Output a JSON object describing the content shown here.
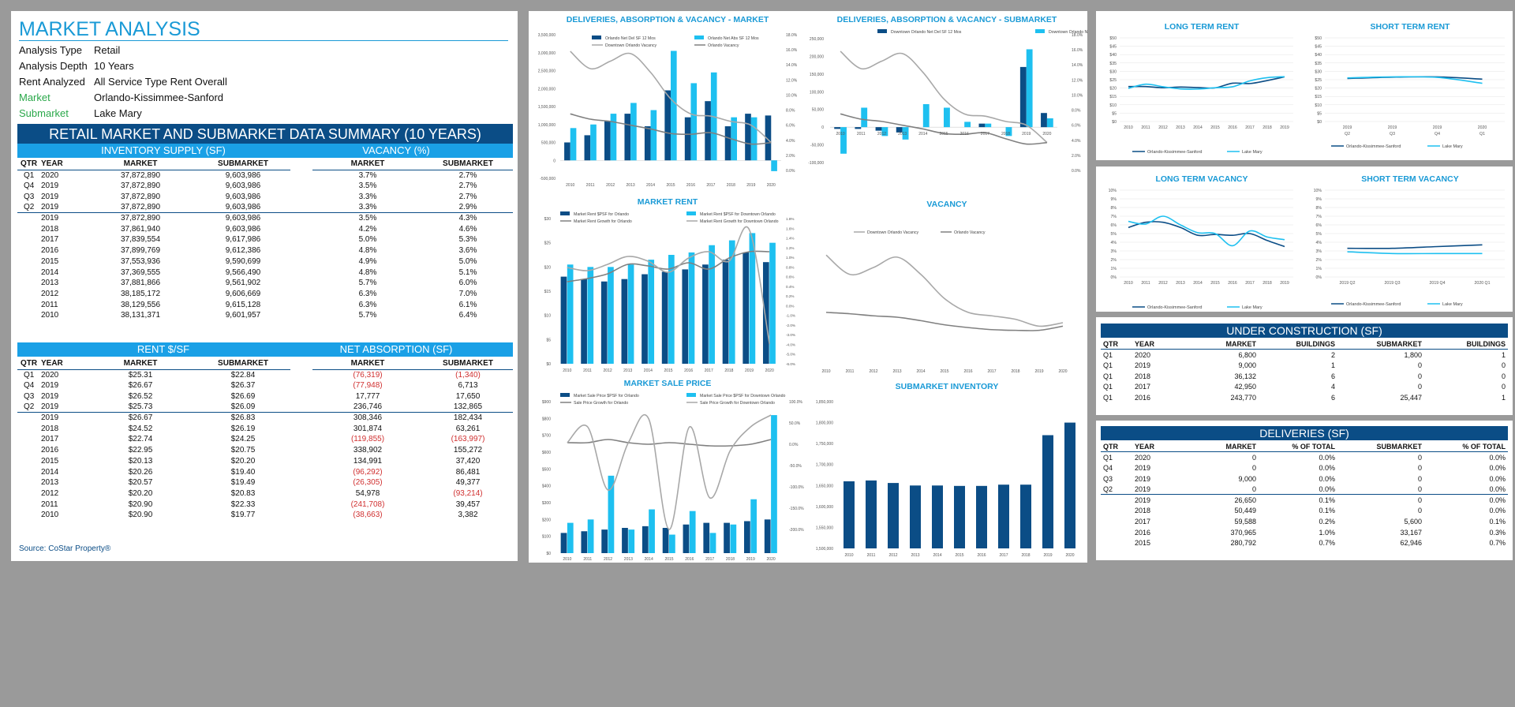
{
  "header": {
    "title": "MARKET ANALYSIS",
    "meta": [
      {
        "k": "Analysis Type",
        "v": "Retail",
        "green": false
      },
      {
        "k": "Analysis Depth",
        "v": "10 Years",
        "green": false
      },
      {
        "k": "Rent Analyzed",
        "v": "All Service Type Rent Overall",
        "green": false
      },
      {
        "k": "Market",
        "v": "Orlando-Kissimmee-Sanford",
        "green": true
      },
      {
        "k": "Submarket",
        "v": "Lake Mary",
        "green": true
      }
    ]
  },
  "summary": {
    "title": "RETAIL MARKET AND SUBMARKET DATA SUMMARY (10 YEARS)",
    "inv_label": "INVENTORY SUPPLY (SF)",
    "vac_label": "VACANCY (%)",
    "rent_label": "RENT $/SF",
    "abs_label": "NET ABSORPTION (SF)",
    "cols": [
      "QTR",
      "YEAR",
      "MARKET",
      "SUBMARKET",
      "MARKET",
      "SUBMARKET"
    ],
    "rows1": [
      [
        "Q1",
        "2020",
        "37,872,890",
        "9,603,986",
        "3.7%",
        "2.7%"
      ],
      [
        "Q4",
        "2019",
        "37,872,890",
        "9,603,986",
        "3.5%",
        "2.7%"
      ],
      [
        "Q3",
        "2019",
        "37,872,890",
        "9,603,986",
        "3.3%",
        "2.7%"
      ],
      [
        "Q2",
        "2019",
        "37,872,890",
        "9,603,986",
        "3.3%",
        "2.9%"
      ],
      [
        "",
        "2019",
        "37,872,890",
        "9,603,986",
        "3.5%",
        "4.3%"
      ],
      [
        "",
        "2018",
        "37,861,940",
        "9,603,986",
        "4.2%",
        "4.6%"
      ],
      [
        "",
        "2017",
        "37,839,554",
        "9,617,986",
        "5.0%",
        "5.3%"
      ],
      [
        "",
        "2016",
        "37,899,769",
        "9,612,386",
        "4.8%",
        "3.6%"
      ],
      [
        "",
        "2015",
        "37,553,936",
        "9,590,699",
        "4.9%",
        "5.0%"
      ],
      [
        "",
        "2014",
        "37,369,555",
        "9,566,490",
        "4.8%",
        "5.1%"
      ],
      [
        "",
        "2013",
        "37,881,866",
        "9,561,902",
        "5.7%",
        "6.0%"
      ],
      [
        "",
        "2012",
        "38,185,172",
        "9,606,669",
        "6.3%",
        "7.0%"
      ],
      [
        "",
        "2011",
        "38,129,556",
        "9,615,128",
        "6.3%",
        "6.1%"
      ],
      [
        "",
        "2010",
        "38,131,371",
        "9,601,957",
        "5.7%",
        "6.4%"
      ]
    ],
    "rows2": [
      [
        "Q1",
        "2020",
        "$25.31",
        "$22.84",
        "(76,319)",
        "(1,340)"
      ],
      [
        "Q4",
        "2019",
        "$26.67",
        "$26.37",
        "(77,948)",
        "6,713"
      ],
      [
        "Q3",
        "2019",
        "$26.52",
        "$26.69",
        "17,777",
        "17,650"
      ],
      [
        "Q2",
        "2019",
        "$25.73",
        "$26.09",
        "236,746",
        "132,865"
      ],
      [
        "",
        "2019",
        "$26.67",
        "$26.83",
        "308,346",
        "182,434"
      ],
      [
        "",
        "2018",
        "$24.52",
        "$26.19",
        "301,874",
        "63,261"
      ],
      [
        "",
        "2017",
        "$22.74",
        "$24.25",
        "(119,855)",
        "(163,997)"
      ],
      [
        "",
        "2016",
        "$22.95",
        "$20.75",
        "338,902",
        "155,272"
      ],
      [
        "",
        "2015",
        "$20.13",
        "$20.20",
        "134,991",
        "37,420"
      ],
      [
        "",
        "2014",
        "$20.26",
        "$19.40",
        "(96,292)",
        "86,481"
      ],
      [
        "",
        "2013",
        "$20.57",
        "$19.49",
        "(26,305)",
        "49,377"
      ],
      [
        "",
        "2012",
        "$20.20",
        "$20.83",
        "54,978",
        "(93,214)"
      ],
      [
        "",
        "2011",
        "$20.90",
        "$22.33",
        "(241,708)",
        "39,457"
      ],
      [
        "",
        "2010",
        "$20.90",
        "$19.77",
        "(38,663)",
        "3,382"
      ]
    ],
    "source": "Source: CoStar Property®"
  },
  "charts": {
    "dav_market": {
      "title": "DELIVERIES, ABSORPTION & VACANCY - MARKET",
      "legend": [
        "Orlando Net Del SF 12 Mos",
        "Orlando Net Abs SF 12 Mos",
        "Downtown Orlando Vacancy",
        "Orlando Vacancy"
      ],
      "yl": [
        "3,500,000",
        "3,000,000",
        "2,500,000",
        "2,000,000",
        "1,500,000",
        "1,000,000",
        "500,000",
        "0",
        "-500,000"
      ],
      "yr": [
        "18.0%",
        "16.0%",
        "14.0%",
        "12.0%",
        "10.0%",
        "8.0%",
        "6.0%",
        "4.0%",
        "2.0%",
        "0.0%"
      ]
    },
    "dav_sub": {
      "title": "DELIVERIES, ABSORPTION & VACANCY - SUBMARKET",
      "legend": [
        "Downtown Orlando Net Del SF 12 Mos",
        "Downtown Orlando Net Abs SF 12 Mos"
      ],
      "yl": [
        "250,000",
        "200,000",
        "150,000",
        "100,000",
        "50,000",
        "0",
        "-50,000",
        "-100,000"
      ],
      "yr": [
        "18.0%",
        "16.0%",
        "14.0%",
        "12.0%",
        "10.0%",
        "8.0%",
        "6.0%",
        "4.0%",
        "2.0%",
        "0.0%"
      ]
    },
    "market_rent": {
      "title": "MARKET RENT",
      "legend": [
        "Market Rent $PSF for Orlando",
        "Market Rent $PSF for Downtown Orlando",
        "Market Rent Growth for Orlando",
        "Market Rent Growth for Downtown Orlando"
      ],
      "yl": [
        "$30",
        "$25",
        "$20",
        "$15",
        "$10",
        "$5",
        "$0"
      ],
      "yr": [
        "1.8%",
        "1.6%",
        "1.4%",
        "1.2%",
        "1.0%",
        "0.8%",
        "0.6%",
        "0.4%",
        "0.2%",
        "0.0%",
        "-1.0%",
        "-2.0%",
        "-3.0%",
        "-4.0%",
        "-5.0%",
        "-6.0%"
      ]
    },
    "vacancy": {
      "title": "VACANCY",
      "legend": [
        "Downtown Orlando Vacancy",
        "Orlando Vacancy"
      ]
    },
    "sale_price": {
      "title": "MARKET SALE PRICE",
      "legend": [
        "Market Sale Price $PSF for Orlando",
        "Market Sale Price $PSF for Downtown Orlando",
        "Sale Price Growth for Orlando",
        "Sale Price Growth for Downtown Orlando"
      ],
      "yl": [
        "$900",
        "$800",
        "$700",
        "$600",
        "$500",
        "$400",
        "$300",
        "$200",
        "$100",
        "$0"
      ],
      "yr": [
        "100.0%",
        "50.0%",
        "0.0%",
        "-50.0%",
        "-100.0%",
        "-150.0%",
        "-200.0%"
      ]
    },
    "sub_inventory": {
      "title": "SUBMARKET INVENTORY",
      "yl": [
        "1,850,000",
        "1,800,000",
        "1,750,000",
        "1,700,000",
        "1,650,000",
        "1,600,000",
        "1,550,000",
        "1,500,000"
      ]
    },
    "ltr": {
      "title": "LONG TERM RENT",
      "yl": [
        "$50",
        "$45",
        "$40",
        "$35",
        "$30",
        "$25",
        "$20",
        "$15",
        "$10",
        "$5",
        "$0"
      ],
      "legend": [
        "Orlando-Kissimmee-Sanford",
        "Lake Mary"
      ]
    },
    "str": {
      "title": "SHORT TERM RENT",
      "yl": [
        "$50",
        "$45",
        "$40",
        "$35",
        "$30",
        "$25",
        "$20",
        "$15",
        "$10",
        "$5",
        "$0"
      ],
      "xt": [
        "2019\nQ2",
        "2019\nQ3",
        "2019\nQ4",
        "2020\nQ1"
      ],
      "legend": [
        "Orlando-Kissimmee-Sanford",
        "Lake Mary"
      ]
    },
    "ltv": {
      "title": "LONG TERM VACANCY",
      "yl": [
        "10%",
        "9%",
        "8%",
        "7%",
        "6%",
        "5%",
        "4%",
        "3%",
        "2%",
        "1%",
        "0%"
      ],
      "legend": [
        "Orlando-Kissimmee-Sanford",
        "Lake Mary"
      ]
    },
    "stv": {
      "title": "SHORT TERM VACANCY",
      "yl": [
        "10%",
        "9%",
        "8%",
        "7%",
        "6%",
        "5%",
        "4%",
        "3%",
        "2%",
        "1%",
        "0%"
      ],
      "legend": [
        "Orlando-Kissimmee-Sanford",
        "Lake Mary"
      ]
    }
  },
  "chart_data": [
    {
      "type": "bar",
      "title": "DELIVERIES, ABSORPTION & VACANCY - MARKET",
      "categories": [
        "2010",
        "2011",
        "2012",
        "2013",
        "2014",
        "2015",
        "2016",
        "2017",
        "2018",
        "2019",
        "2020"
      ],
      "series": [
        {
          "name": "Orlando Net Del SF 12 Mos",
          "values": [
            500000,
            700000,
            1100000,
            1300000,
            950000,
            1950000,
            1200000,
            1650000,
            950000,
            1300000,
            1250000
          ]
        },
        {
          "name": "Orlando Net Abs SF 12 Mos",
          "values": [
            900000,
            1000000,
            1300000,
            1600000,
            1400000,
            3050000,
            2150000,
            2450000,
            1200000,
            1200000,
            -300000
          ]
        },
        {
          "name": "Downtown Orlando Vacancy",
          "values": [
            15.8,
            13.5,
            14.5,
            15.5,
            13.0,
            9.5,
            7.5,
            7.2,
            6.5,
            6.0,
            3.7
          ]
        },
        {
          "name": "Orlando Vacancy",
          "values": [
            7.5,
            6.8,
            6.5,
            6.0,
            5.5,
            4.9,
            4.8,
            5.0,
            4.2,
            3.5,
            3.7
          ]
        }
      ],
      "ylim": [
        -500000,
        3500000
      ],
      "y2lim": [
        0,
        18
      ]
    },
    {
      "type": "bar",
      "title": "DELIVERIES, ABSORPTION & VACANCY - SUBMARKET",
      "categories": [
        "2010",
        "2011",
        "2012",
        "2013",
        "2014",
        "2015",
        "2016",
        "2017",
        "2018",
        "2019",
        "2020"
      ],
      "series": [
        {
          "name": "Downtown Orlando Net Del SF 12 Mos",
          "values": [
            -5000,
            -5000,
            -10000,
            -15000,
            0,
            0,
            0,
            10000,
            0,
            170000,
            40000
          ]
        },
        {
          "name": "Downtown Orlando Net Abs SF 12 Mos",
          "values": [
            -75000,
            55000,
            -25000,
            -35000,
            65000,
            55000,
            15000,
            10000,
            -25000,
            220000,
            25000
          ]
        }
      ],
      "ylim": [
        -100000,
        250000
      ]
    },
    {
      "type": "bar",
      "title": "MARKET RENT",
      "categories": [
        "2010",
        "2011",
        "2012",
        "2013",
        "2014",
        "2015",
        "2016",
        "2017",
        "2018",
        "2019",
        "2020"
      ],
      "series": [
        {
          "name": "Market Rent $PSF for Orlando",
          "values": [
            18,
            17.5,
            17,
            17.5,
            18.5,
            19,
            19.5,
            20.5,
            21.5,
            23,
            21
          ]
        },
        {
          "name": "Market Rent $PSF for Downtown Orlando",
          "values": [
            20.5,
            20,
            20,
            20.5,
            21.5,
            22.5,
            23,
            24.5,
            25.5,
            27,
            25
          ]
        }
      ],
      "ylim": [
        0,
        30
      ]
    },
    {
      "type": "line",
      "title": "VACANCY",
      "categories": [
        "2010",
        "2011",
        "2012",
        "2013",
        "2014",
        "2015",
        "2016",
        "2017",
        "2018",
        "2019",
        "2020"
      ],
      "series": [
        {
          "name": "Downtown Orlando Vacancy",
          "values": [
            15.8,
            13.0,
            14.0,
            15.5,
            13.0,
            9.5,
            7.5,
            7.0,
            6.5,
            5.5,
            6.0
          ]
        },
        {
          "name": "Orlando Vacancy",
          "values": [
            7.5,
            7.3,
            7.0,
            6.8,
            6.3,
            5.7,
            5.3,
            5.0,
            4.9,
            4.9,
            5.5
          ]
        }
      ]
    },
    {
      "type": "bar",
      "title": "MARKET SALE PRICE",
      "categories": [
        "2010",
        "2011",
        "2012",
        "2013",
        "2014",
        "2015",
        "2016",
        "2017",
        "2018",
        "2019",
        "2020"
      ],
      "series": [
        {
          "name": "Market Sale Price $PSF for Orlando",
          "values": [
            120,
            130,
            140,
            150,
            160,
            150,
            170,
            180,
            180,
            190,
            200
          ]
        },
        {
          "name": "Market Sale Price $PSF for Downtown Orlando",
          "values": [
            180,
            200,
            460,
            140,
            260,
            110,
            250,
            120,
            170,
            320,
            820
          ]
        }
      ],
      "ylim": [
        0,
        900
      ]
    },
    {
      "type": "bar",
      "title": "SUBMARKET INVENTORY",
      "categories": [
        "2010",
        "2011",
        "2012",
        "2013",
        "2014",
        "2015",
        "2016",
        "2017",
        "2018",
        "2019",
        "2020"
      ],
      "series": [
        {
          "name": "Submarket Inventory",
          "values": [
            1660000,
            1662000,
            1656000,
            1650000,
            1650000,
            1649000,
            1649000,
            1652000,
            1652000,
            1770000,
            1800000
          ]
        }
      ],
      "ylim": [
        1500000,
        1850000
      ]
    },
    {
      "type": "line",
      "title": "LONG TERM RENT",
      "categories": [
        "2010",
        "2011",
        "2012",
        "2013",
        "2014",
        "2015",
        "2016",
        "2017",
        "2018",
        "2019"
      ],
      "series": [
        {
          "name": "Orlando-Kissimmee-Sanford",
          "values": [
            20.9,
            20.9,
            20.2,
            20.6,
            20.3,
            20.1,
            22.9,
            22.7,
            24.5,
            26.7
          ]
        },
        {
          "name": "Lake Mary",
          "values": [
            19.8,
            22.3,
            20.8,
            19.5,
            19.4,
            20.2,
            20.8,
            24.3,
            26.2,
            26.8
          ]
        }
      ],
      "ylim": [
        0,
        50
      ]
    },
    {
      "type": "line",
      "title": "SHORT TERM RENT",
      "categories": [
        "2019 Q2",
        "2019 Q3",
        "2019 Q4",
        "2020 Q1"
      ],
      "series": [
        {
          "name": "Orlando-Kissimmee-Sanford",
          "values": [
            25.73,
            26.52,
            26.67,
            25.31
          ]
        },
        {
          "name": "Lake Mary",
          "values": [
            26.09,
            26.69,
            26.37,
            22.84
          ]
        }
      ],
      "ylim": [
        0,
        50
      ]
    },
    {
      "type": "line",
      "title": "LONG TERM VACANCY",
      "categories": [
        "2010",
        "2011",
        "2012",
        "2013",
        "2014",
        "2015",
        "2016",
        "2017",
        "2018",
        "2019"
      ],
      "series": [
        {
          "name": "Orlando-Kissimmee-Sanford",
          "values": [
            5.7,
            6.3,
            6.3,
            5.7,
            4.8,
            4.9,
            4.8,
            5.0,
            4.2,
            3.5
          ]
        },
        {
          "name": "Lake Mary",
          "values": [
            6.4,
            6.1,
            7.0,
            6.0,
            5.1,
            5.0,
            3.6,
            5.3,
            4.6,
            4.3
          ]
        }
      ],
      "ylim": [
        0,
        10
      ]
    },
    {
      "type": "line",
      "title": "SHORT TERM VACANCY",
      "categories": [
        "2019 Q2",
        "2019 Q3",
        "2019 Q4",
        "2020 Q1"
      ],
      "series": [
        {
          "name": "Orlando-Kissimmee-Sanford",
          "values": [
            3.3,
            3.3,
            3.5,
            3.7
          ]
        },
        {
          "name": "Lake Mary",
          "values": [
            2.9,
            2.7,
            2.7,
            2.7
          ]
        }
      ],
      "ylim": [
        0,
        10
      ]
    }
  ],
  "construction": {
    "title": "UNDER CONSTRUCTION (SF)",
    "cols": [
      "QTR",
      "YEAR",
      "MARKET",
      "BUILDINGS",
      "SUBMARKET",
      "BUILDINGS"
    ],
    "rows": [
      [
        "Q1",
        "2020",
        "6,800",
        "2",
        "1,800",
        "1"
      ],
      [
        "Q1",
        "2019",
        "9,000",
        "1",
        "0",
        "0"
      ],
      [
        "Q1",
        "2018",
        "36,132",
        "6",
        "0",
        "0"
      ],
      [
        "Q1",
        "2017",
        "42,950",
        "4",
        "0",
        "0"
      ],
      [
        "Q1",
        "2016",
        "243,770",
        "6",
        "25,447",
        "1"
      ]
    ]
  },
  "deliveries": {
    "title": "DELIVERIES (SF)",
    "cols": [
      "QTR",
      "YEAR",
      "MARKET",
      "% OF TOTAL",
      "SUBMARKET",
      "% OF TOTAL"
    ],
    "rows": [
      [
        "Q1",
        "2020",
        "0",
        "0.0%",
        "0",
        "0.0%"
      ],
      [
        "Q4",
        "2019",
        "0",
        "0.0%",
        "0",
        "0.0%"
      ],
      [
        "Q3",
        "2019",
        "9,000",
        "0.0%",
        "0",
        "0.0%"
      ],
      [
        "Q2",
        "2019",
        "0",
        "0.0%",
        "0",
        "0.0%"
      ],
      [
        "",
        "2019",
        "26,650",
        "0.1%",
        "0",
        "0.0%"
      ],
      [
        "",
        "2018",
        "50,449",
        "0.1%",
        "0",
        "0.0%"
      ],
      [
        "",
        "2017",
        "59,588",
        "0.2%",
        "5,600",
        "0.1%"
      ],
      [
        "",
        "2016",
        "370,965",
        "1.0%",
        "33,167",
        "0.3%"
      ],
      [
        "",
        "2015",
        "280,792",
        "0.7%",
        "62,946",
        "0.7%"
      ]
    ]
  },
  "colors": {
    "dark": "#0b4d86",
    "light": "#1ec0f0",
    "gray": "#a8a8a8",
    "gray2": "#808080"
  }
}
